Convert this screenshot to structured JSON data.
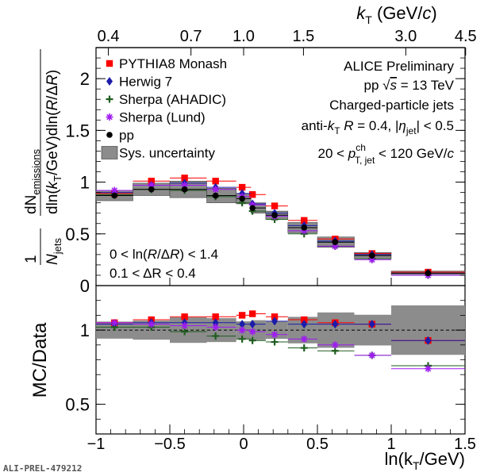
{
  "label_id": "ALI-PREL-479212",
  "chart_data": {
    "type": "scatter",
    "x_axis": {
      "label_main": "ln(k",
      "label_sub": "T",
      "label_tail": "/GeV)",
      "range": [
        -1,
        1.5
      ],
      "ticks": [
        -1,
        -0.5,
        0,
        0.5,
        1,
        1.5
      ],
      "tick_labels": [
        "−1",
        "−0.5",
        "0",
        "0.5",
        "1",
        "1.5"
      ]
    },
    "top_axis": {
      "label_main": "k",
      "label_sub": "T",
      "label_tail": " (GeV/",
      "label_c": "c",
      "label_end": ")",
      "ticks": [
        0.4,
        0.7,
        1.0,
        1.5,
        3.0,
        4.5
      ],
      "tick_labels": [
        "0.4",
        "0.7",
        "1.0",
        "1.5",
        "3.0",
        "4.5"
      ]
    },
    "upper_panel": {
      "ylabel": "1/N_jets dN_emissions / dln(k_T/GeV)dln(R/ΔR)",
      "ylim": [
        0,
        2.3
      ],
      "ticks": [
        0,
        0.5,
        1,
        1.5,
        2
      ],
      "tick_labels": [
        "0",
        "0.5",
        "1",
        "1.5",
        "2"
      ]
    },
    "lower_panel": {
      "ylabel": "MC/Data",
      "ylim": [
        0.3,
        1.3
      ],
      "ticks": [
        0.5,
        1
      ],
      "tick_labels": [
        "0.5",
        "1"
      ],
      "reference_line": 1.0
    },
    "bins": [
      [
        -1.0,
        -0.75
      ],
      [
        -0.75,
        -0.5
      ],
      [
        -0.5,
        -0.25
      ],
      [
        -0.25,
        -0.05
      ],
      [
        -0.05,
        0.05
      ],
      [
        0.05,
        0.15
      ],
      [
        0.15,
        0.3
      ],
      [
        0.3,
        0.5
      ],
      [
        0.5,
        0.75
      ],
      [
        0.75,
        1.0
      ],
      [
        1.0,
        1.5
      ]
    ],
    "x_centers": [
      -0.875,
      -0.625,
      -0.4,
      -0.19,
      -0.01,
      0.06,
      0.21,
      0.41,
      0.62,
      0.87,
      1.25
    ],
    "data": {
      "name": "pp",
      "values": [
        0.87,
        0.93,
        0.93,
        0.87,
        0.84,
        0.75,
        0.68,
        0.56,
        0.42,
        0.29,
        0.12
      ],
      "sys_unc": [
        0.05,
        0.06,
        0.08,
        0.07,
        0.05,
        0.05,
        0.04,
        0.05,
        0.05,
        0.03,
        0.02
      ]
    },
    "series": [
      {
        "name": "PYTHIA8 Monash",
        "color": "#ff0000",
        "marker": "square",
        "values": [
          0.89,
          1.01,
          1.04,
          1.01,
          0.95,
          0.88,
          0.77,
          0.63,
          0.45,
          0.31,
          0.13
        ],
        "ratio": [
          1.05,
          1.07,
          1.09,
          1.09,
          1.1,
          1.11,
          1.09,
          1.07,
          1.05,
          1.04,
          0.93
        ]
      },
      {
        "name": "Herwig 7",
        "color": "#1c1cab",
        "marker": "diamond",
        "values": [
          0.9,
          0.97,
          0.99,
          0.95,
          0.89,
          0.79,
          0.7,
          0.58,
          0.43,
          0.3,
          0.12
        ],
        "ratio": [
          1.04,
          1.05,
          1.05,
          1.05,
          1.04,
          1.04,
          1.06,
          1.04,
          1.04,
          1.04,
          0.93
        ]
      },
      {
        "name": "Sherpa (AHADIC)",
        "color": "#1e5c1e",
        "marker": "plus",
        "values": [
          0.88,
          0.93,
          0.92,
          0.86,
          0.8,
          0.72,
          0.64,
          0.5,
          0.38,
          0.26,
          0.1
        ],
        "ratio": [
          1.02,
          1.02,
          0.99,
          0.96,
          0.94,
          0.93,
          0.92,
          0.88,
          0.86,
          0.83,
          0.76
        ]
      },
      {
        "name": "Sherpa (Lund)",
        "color": "#9f1cf0",
        "marker": "star",
        "values": [
          0.92,
          0.97,
          0.97,
          0.93,
          0.86,
          0.78,
          0.67,
          0.53,
          0.38,
          0.25,
          0.1
        ],
        "ratio": [
          1.05,
          1.04,
          1.03,
          1.02,
          1.0,
          0.99,
          0.97,
          0.94,
          0.9,
          0.83,
          0.74
        ]
      }
    ],
    "legend": [
      {
        "label": "PYTHIA8 Monash",
        "color": "#ff0000",
        "marker": "square"
      },
      {
        "label": "Herwig 7",
        "color": "#1c1cab",
        "marker": "diamond"
      },
      {
        "label": "Sherpa (AHADIC)",
        "color": "#1e5c1e",
        "marker": "plus"
      },
      {
        "label": "Sherpa (Lund)",
        "color": "#9f1cf0",
        "marker": "star"
      },
      {
        "label": "pp",
        "color": "#000000",
        "marker": "circle"
      },
      {
        "label": "Sys. uncertainty",
        "color": "#808080",
        "marker": "box"
      }
    ],
    "annotations": {
      "l1": "ALICE Preliminary",
      "l2_a": "pp ",
      "l2_b": "s",
      "l2_c": " = 13 TeV",
      "l3": "Charged-particle jets",
      "l4_a": "anti-",
      "l4_k": "k",
      "l4_T": "T",
      "l4_b": " R",
      "l4_c": " = 0.4, |",
      "l4_eta": "η",
      "l4_jet": "jet",
      "l4_d": "| < 0.5",
      "l5_a": "20 < ",
      "l5_p": "p",
      "l5_ch": "ch",
      "l5_T": "T, jet",
      "l5_b": " < 120 GeV/",
      "l5_c": "c",
      "c1_a": "0 < ln(",
      "c1_R": "R",
      "c1_b": "/Δ",
      "c1_c": ") < 1.4",
      "c2": "0.1 < ΔR < 0.4"
    }
  }
}
